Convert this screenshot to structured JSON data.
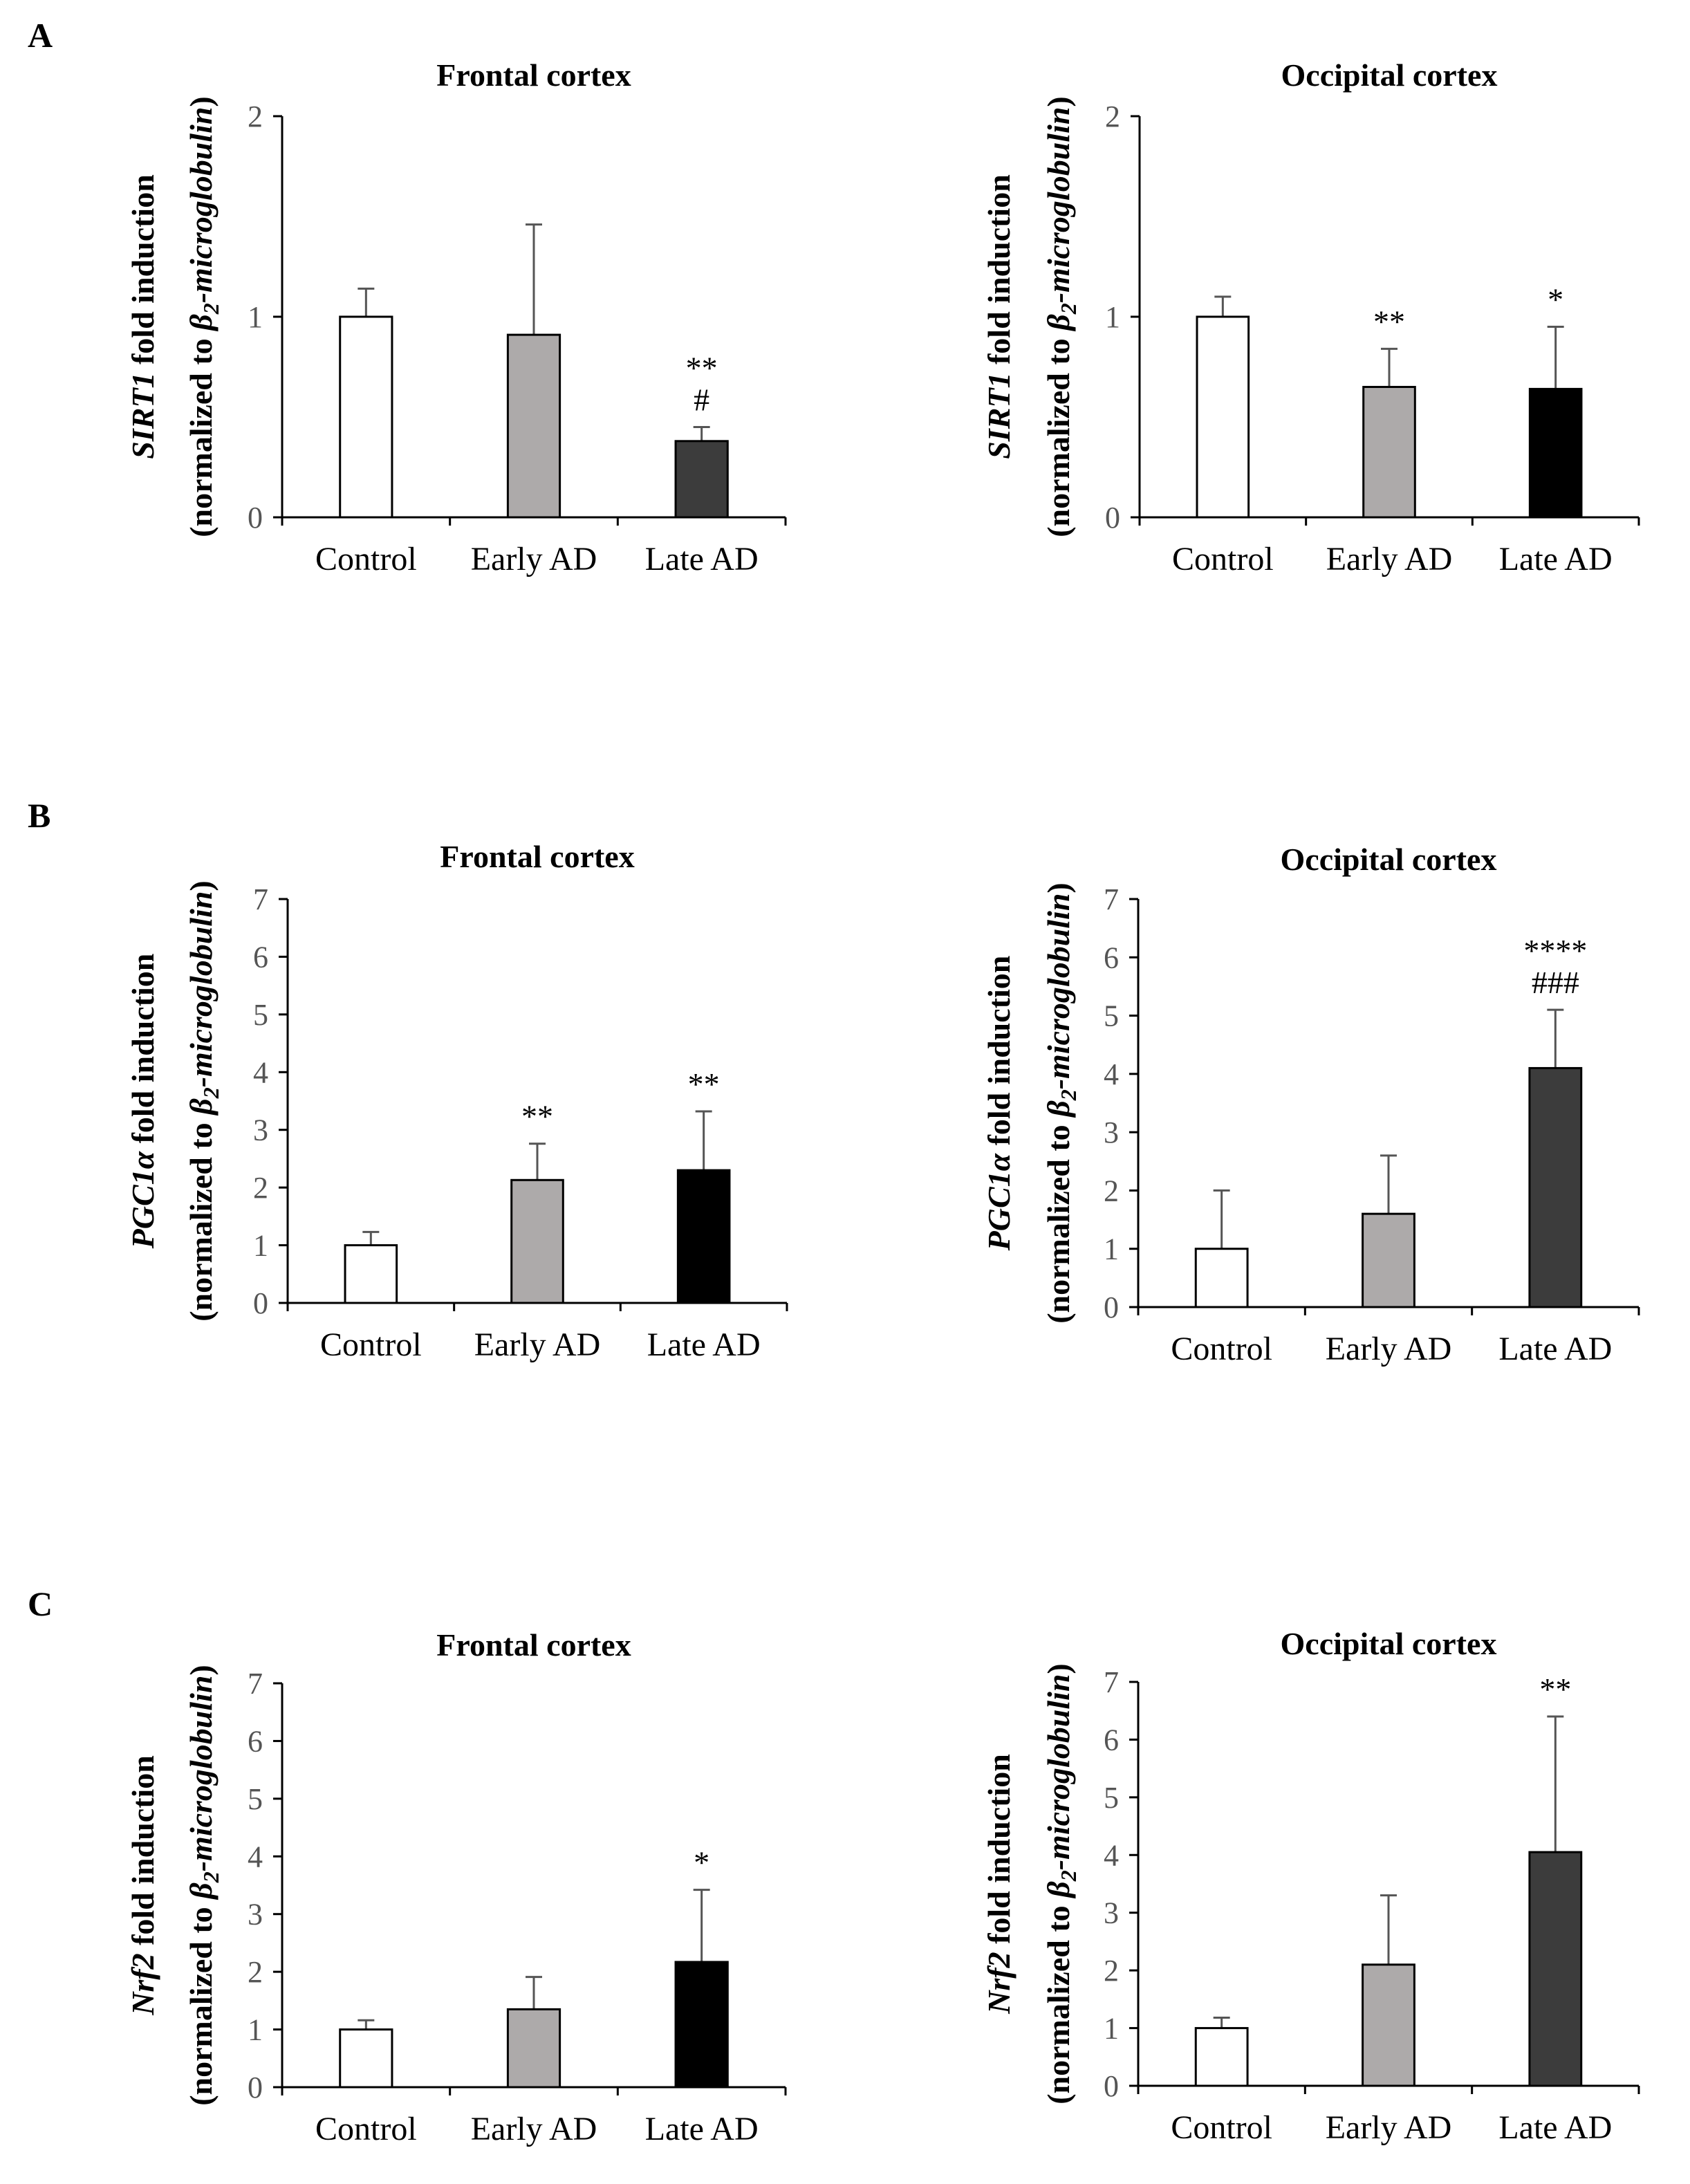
{
  "panel_labels": [
    "A",
    "B",
    "C"
  ],
  "categories": [
    "Control",
    "Early AD",
    "Late AD"
  ],
  "colors": {
    "white": "#ffffff",
    "light_gray": "#adaaaa",
    "dark_gray": "#3c3c3c",
    "black": "#000000"
  },
  "y_label_suffix": " fold induction",
  "y_label_line2": {
    "pre": "(normalized to ",
    "beta": "β",
    "sub": "2",
    "italic": "-microglobulin",
    "close": ")"
  },
  "chart_data": [
    {
      "type": "bar",
      "panel": "A",
      "title": "Frontal cortex",
      "gene": "SIRT1",
      "ylim": [
        0,
        2
      ],
      "yticks": [
        0,
        1,
        2
      ],
      "series": [
        {
          "name": "fold induction",
          "values": [
            1.0,
            0.91,
            0.38
          ],
          "errors": [
            0.14,
            0.55,
            0.07
          ]
        }
      ],
      "bar_colors": [
        "#ffffff",
        "#adaaaa",
        "#3c3c3c"
      ],
      "annotations": [
        [],
        [],
        [
          "**",
          "#"
        ]
      ]
    },
    {
      "type": "bar",
      "panel": "A",
      "title": "Occipital cortex",
      "gene": "SIRT1",
      "ylim": [
        0,
        2
      ],
      "yticks": [
        0,
        1,
        2
      ],
      "series": [
        {
          "name": "fold induction",
          "values": [
            1.0,
            0.65,
            0.64
          ],
          "errors": [
            0.1,
            0.19,
            0.31
          ]
        }
      ],
      "bar_colors": [
        "#ffffff",
        "#adaaaa",
        "#000000"
      ],
      "annotations": [
        [],
        [
          "**"
        ],
        [
          "*"
        ]
      ]
    },
    {
      "type": "bar",
      "panel": "B",
      "title": "Frontal cortex",
      "gene": "PGC1α",
      "ylim": [
        0,
        7
      ],
      "yticks": [
        0,
        1,
        2,
        3,
        4,
        5,
        6,
        7
      ],
      "series": [
        {
          "name": "fold induction",
          "values": [
            1.0,
            2.13,
            2.3
          ],
          "errors": [
            0.23,
            0.63,
            1.02
          ]
        }
      ],
      "bar_colors": [
        "#ffffff",
        "#adaaaa",
        "#000000"
      ],
      "annotations": [
        [],
        [
          "**"
        ],
        [
          "**"
        ]
      ]
    },
    {
      "type": "bar",
      "panel": "B",
      "title": "Occipital cortex",
      "gene": "PGC1α",
      "ylim": [
        0,
        7
      ],
      "yticks": [
        0,
        1,
        2,
        3,
        4,
        5,
        6,
        7
      ],
      "series": [
        {
          "name": "fold induction",
          "values": [
            1.0,
            1.6,
            4.1
          ],
          "errors": [
            1.0,
            1.0,
            1.0
          ]
        }
      ],
      "bar_colors": [
        "#ffffff",
        "#adaaaa",
        "#3c3c3c"
      ],
      "annotations": [
        [],
        [],
        [
          "****",
          "###"
        ]
      ]
    },
    {
      "type": "bar",
      "panel": "C",
      "title": "Frontal cortex",
      "gene": "Nrf2",
      "ylim": [
        0,
        7
      ],
      "yticks": [
        0,
        1,
        2,
        3,
        4,
        5,
        6,
        7
      ],
      "series": [
        {
          "name": "fold induction",
          "values": [
            1.0,
            1.35,
            2.17
          ],
          "errors": [
            0.16,
            0.56,
            1.25
          ]
        }
      ],
      "bar_colors": [
        "#ffffff",
        "#adaaaa",
        "#000000"
      ],
      "annotations": [
        [],
        [],
        [
          "*"
        ]
      ]
    },
    {
      "type": "bar",
      "panel": "C",
      "title": "Occipital cortex",
      "gene": "Nrf2",
      "ylim": [
        0,
        7
      ],
      "yticks": [
        0,
        1,
        2,
        3,
        4,
        5,
        6,
        7
      ],
      "series": [
        {
          "name": "fold induction",
          "values": [
            1.0,
            2.1,
            4.05
          ],
          "errors": [
            0.18,
            1.2,
            2.35
          ]
        }
      ],
      "bar_colors": [
        "#ffffff",
        "#adaaaa",
        "#3c3c3c"
      ],
      "annotations": [
        [],
        [],
        [
          "**"
        ]
      ]
    }
  ]
}
